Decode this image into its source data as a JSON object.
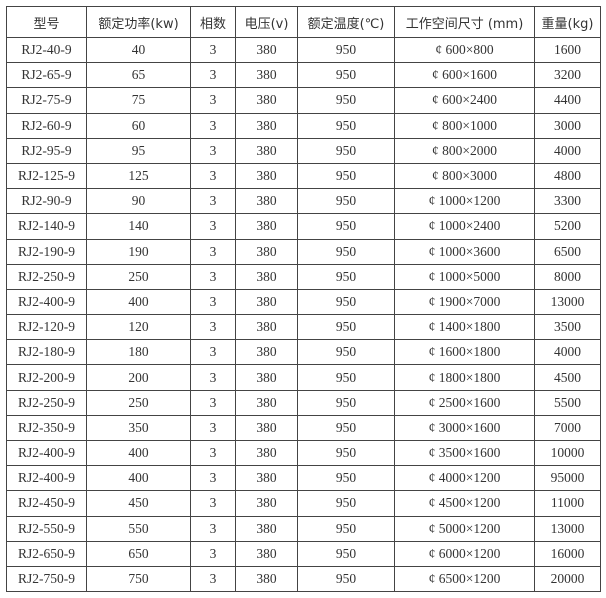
{
  "table": {
    "headers": [
      "型号",
      "额定功率(kw)",
      "相数",
      "电压(v)",
      "额定温度(℃)",
      "工作空间尺寸 (mm)",
      "重量(kg)"
    ],
    "rows": [
      [
        "RJ2-40-9",
        "40",
        "3",
        "380",
        "950",
        "¢ 600×800",
        "1600"
      ],
      [
        "RJ2-65-9",
        "65",
        "3",
        "380",
        "950",
        "¢ 600×1600",
        "3200"
      ],
      [
        "RJ2-75-9",
        "75",
        "3",
        "380",
        "950",
        "¢ 600×2400",
        "4400"
      ],
      [
        "RJ2-60-9",
        "60",
        "3",
        "380",
        "950",
        "¢ 800×1000",
        "3000"
      ],
      [
        "RJ2-95-9",
        "95",
        "3",
        "380",
        "950",
        "¢ 800×2000",
        "4000"
      ],
      [
        "RJ2-125-9",
        "125",
        "3",
        "380",
        "950",
        "¢ 800×3000",
        "4800"
      ],
      [
        "RJ2-90-9",
        "90",
        "3",
        "380",
        "950",
        "¢ 1000×1200",
        "3300"
      ],
      [
        "RJ2-140-9",
        "140",
        "3",
        "380",
        "950",
        "¢ 1000×2400",
        "5200"
      ],
      [
        "RJ2-190-9",
        "190",
        "3",
        "380",
        "950",
        "¢ 1000×3600",
        "6500"
      ],
      [
        "RJ2-250-9",
        "250",
        "3",
        "380",
        "950",
        "¢ 1000×5000",
        "8000"
      ],
      [
        "RJ2-400-9",
        "400",
        "3",
        "380",
        "950",
        "¢ 1900×7000",
        "13000"
      ],
      [
        "RJ2-120-9",
        "120",
        "3",
        "380",
        "950",
        "¢ 1400×1800",
        "3500"
      ],
      [
        "RJ2-180-9",
        "180",
        "3",
        "380",
        "950",
        "¢ 1600×1800",
        "4000"
      ],
      [
        "RJ2-200-9",
        "200",
        "3",
        "380",
        "950",
        "¢ 1800×1800",
        "4500"
      ],
      [
        "RJ2-250-9",
        "250",
        "3",
        "380",
        "950",
        "¢ 2500×1600",
        "5500"
      ],
      [
        "RJ2-350-9",
        "350",
        "3",
        "380",
        "950",
        "¢ 3000×1600",
        "7000"
      ],
      [
        "RJ2-400-9",
        "400",
        "3",
        "380",
        "950",
        "¢ 3500×1600",
        "10000"
      ],
      [
        "RJ2-400-9",
        "400",
        "3",
        "380",
        "950",
        "¢ 4000×1200",
        "95000"
      ],
      [
        "RJ2-450-9",
        "450",
        "3",
        "380",
        "950",
        "¢ 4500×1200",
        "11000"
      ],
      [
        "RJ2-550-9",
        "550",
        "3",
        "380",
        "950",
        "¢ 5000×1200",
        "13000"
      ],
      [
        "RJ2-650-9",
        "650",
        "3",
        "380",
        "950",
        "¢ 6000×1200",
        "16000"
      ],
      [
        "RJ2-750-9",
        "750",
        "3",
        "380",
        "950",
        "¢ 6500×1200",
        "20000"
      ]
    ]
  }
}
